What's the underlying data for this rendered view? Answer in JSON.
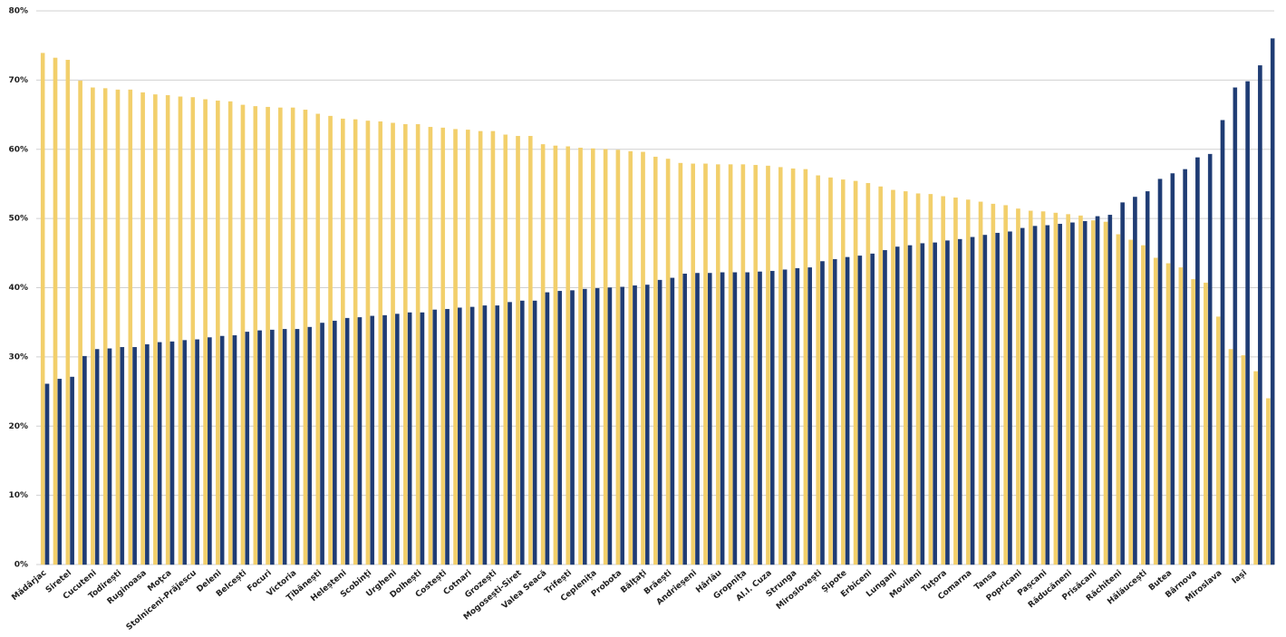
{
  "chart_data": {
    "type": "bar",
    "categories": [
      "Mădârjac",
      null,
      "Siretel",
      null,
      "Cucuteni",
      null,
      "Todirești",
      null,
      "Ruginoasa",
      null,
      "Moţca",
      null,
      "Stolniceni-Prăjescu",
      null,
      "Deleni",
      null,
      "Belcești",
      null,
      "Focuri",
      null,
      "Victoria",
      null,
      "Ţibănești",
      null,
      "Heleșteni",
      null,
      "Scobinţi",
      null,
      "Urgheni",
      null,
      "Dolhești",
      null,
      "Costești",
      null,
      "Cotnari",
      null,
      "Grozești",
      null,
      "Mogosești-Siret",
      null,
      "Valea Seacă",
      null,
      "Trifești",
      null,
      "Ceplenița",
      null,
      "Probota",
      null,
      "Bălţaţi",
      null,
      "Brăești",
      null,
      "Andrieșeni",
      null,
      "Hârlău",
      null,
      "Gropnița",
      null,
      "Al.I. Cuza",
      null,
      "Strunga",
      null,
      "Miroslovești",
      null,
      "Șipote",
      null,
      "Erbiceni",
      null,
      "Lungani",
      null,
      "Movileni",
      null,
      "Tuţora",
      null,
      "Comarna",
      null,
      "Tansa",
      null,
      "Popricani",
      null,
      "Pașcani",
      null,
      "Răducăneni",
      null,
      "Prisăcani",
      null,
      "Răchiteni",
      null,
      "Hălăucești",
      null,
      "Butea",
      null,
      "Bârnova",
      null,
      "Miroslava",
      null,
      "Iași",
      null,
      null
    ],
    "series": [
      {
        "color": "#f2cf6b",
        "values": [
          73.9,
          73.2,
          72.9,
          69.9,
          68.9,
          68.8,
          68.6,
          68.6,
          68.2,
          67.9,
          67.8,
          67.6,
          67.5,
          67.2,
          67.0,
          66.9,
          66.4,
          66.2,
          66.1,
          66.0,
          66.0,
          65.7,
          65.1,
          64.8,
          64.4,
          64.3,
          64.1,
          64.0,
          63.8,
          63.6,
          63.6,
          63.2,
          63.1,
          62.9,
          62.8,
          62.6,
          62.6,
          62.1,
          61.9,
          61.9,
          60.7,
          60.5,
          60.4,
          60.2,
          60.1,
          60.0,
          59.9,
          59.7,
          59.6,
          58.9,
          58.6,
          58.0,
          57.9,
          57.9,
          57.8,
          57.8,
          57.8,
          57.7,
          57.6,
          57.4,
          57.2,
          57.1,
          56.2,
          55.9,
          55.6,
          55.4,
          55.1,
          54.6,
          54.1,
          53.9,
          53.6,
          53.5,
          53.2,
          53.0,
          52.7,
          52.4,
          52.1,
          51.9,
          51.4,
          51.1,
          51.0,
          50.8,
          50.6,
          50.4,
          49.7,
          49.5,
          47.7,
          46.9,
          46.1,
          44.3,
          43.5,
          42.9,
          41.2,
          40.7,
          35.8,
          31.1,
          30.2,
          27.9,
          24.0
        ]
      },
      {
        "color": "#1f3c74",
        "values": [
          26.1,
          26.8,
          27.1,
          30.1,
          31.1,
          31.2,
          31.4,
          31.4,
          31.8,
          32.1,
          32.2,
          32.4,
          32.5,
          32.8,
          33.0,
          33.1,
          33.6,
          33.8,
          33.9,
          34.0,
          34.0,
          34.3,
          34.9,
          35.2,
          35.6,
          35.7,
          35.9,
          36.0,
          36.2,
          36.4,
          36.4,
          36.8,
          36.9,
          37.1,
          37.2,
          37.4,
          37.4,
          37.9,
          38.1,
          38.1,
          39.3,
          39.5,
          39.6,
          39.8,
          39.9,
          40.0,
          40.1,
          40.3,
          40.4,
          41.1,
          41.4,
          42.0,
          42.1,
          42.1,
          42.2,
          42.2,
          42.2,
          42.3,
          42.4,
          42.6,
          42.8,
          42.9,
          43.8,
          44.1,
          44.4,
          44.6,
          44.9,
          45.4,
          45.9,
          46.1,
          46.4,
          46.5,
          46.8,
          47.0,
          47.3,
          47.6,
          47.9,
          48.1,
          48.6,
          48.9,
          49.0,
          49.2,
          49.4,
          49.6,
          50.3,
          50.5,
          52.3,
          53.1,
          53.9,
          55.7,
          56.5,
          57.1,
          58.8,
          59.3,
          64.2,
          68.9,
          69.8,
          72.1,
          76.0
        ]
      }
    ],
    "ylim": [
      0,
      80
    ],
    "yticks": [
      {
        "value": 0,
        "label": "0%"
      },
      {
        "value": 10,
        "label": "10%"
      },
      {
        "value": 20,
        "label": "20%"
      },
      {
        "value": 30,
        "label": "30%"
      },
      {
        "value": 40,
        "label": "40%"
      },
      {
        "value": 50,
        "label": "50%"
      },
      {
        "value": 60,
        "label": "60%"
      },
      {
        "value": 70,
        "label": "70%"
      },
      {
        "value": 80,
        "label": "80%"
      }
    ],
    "grid": true
  }
}
